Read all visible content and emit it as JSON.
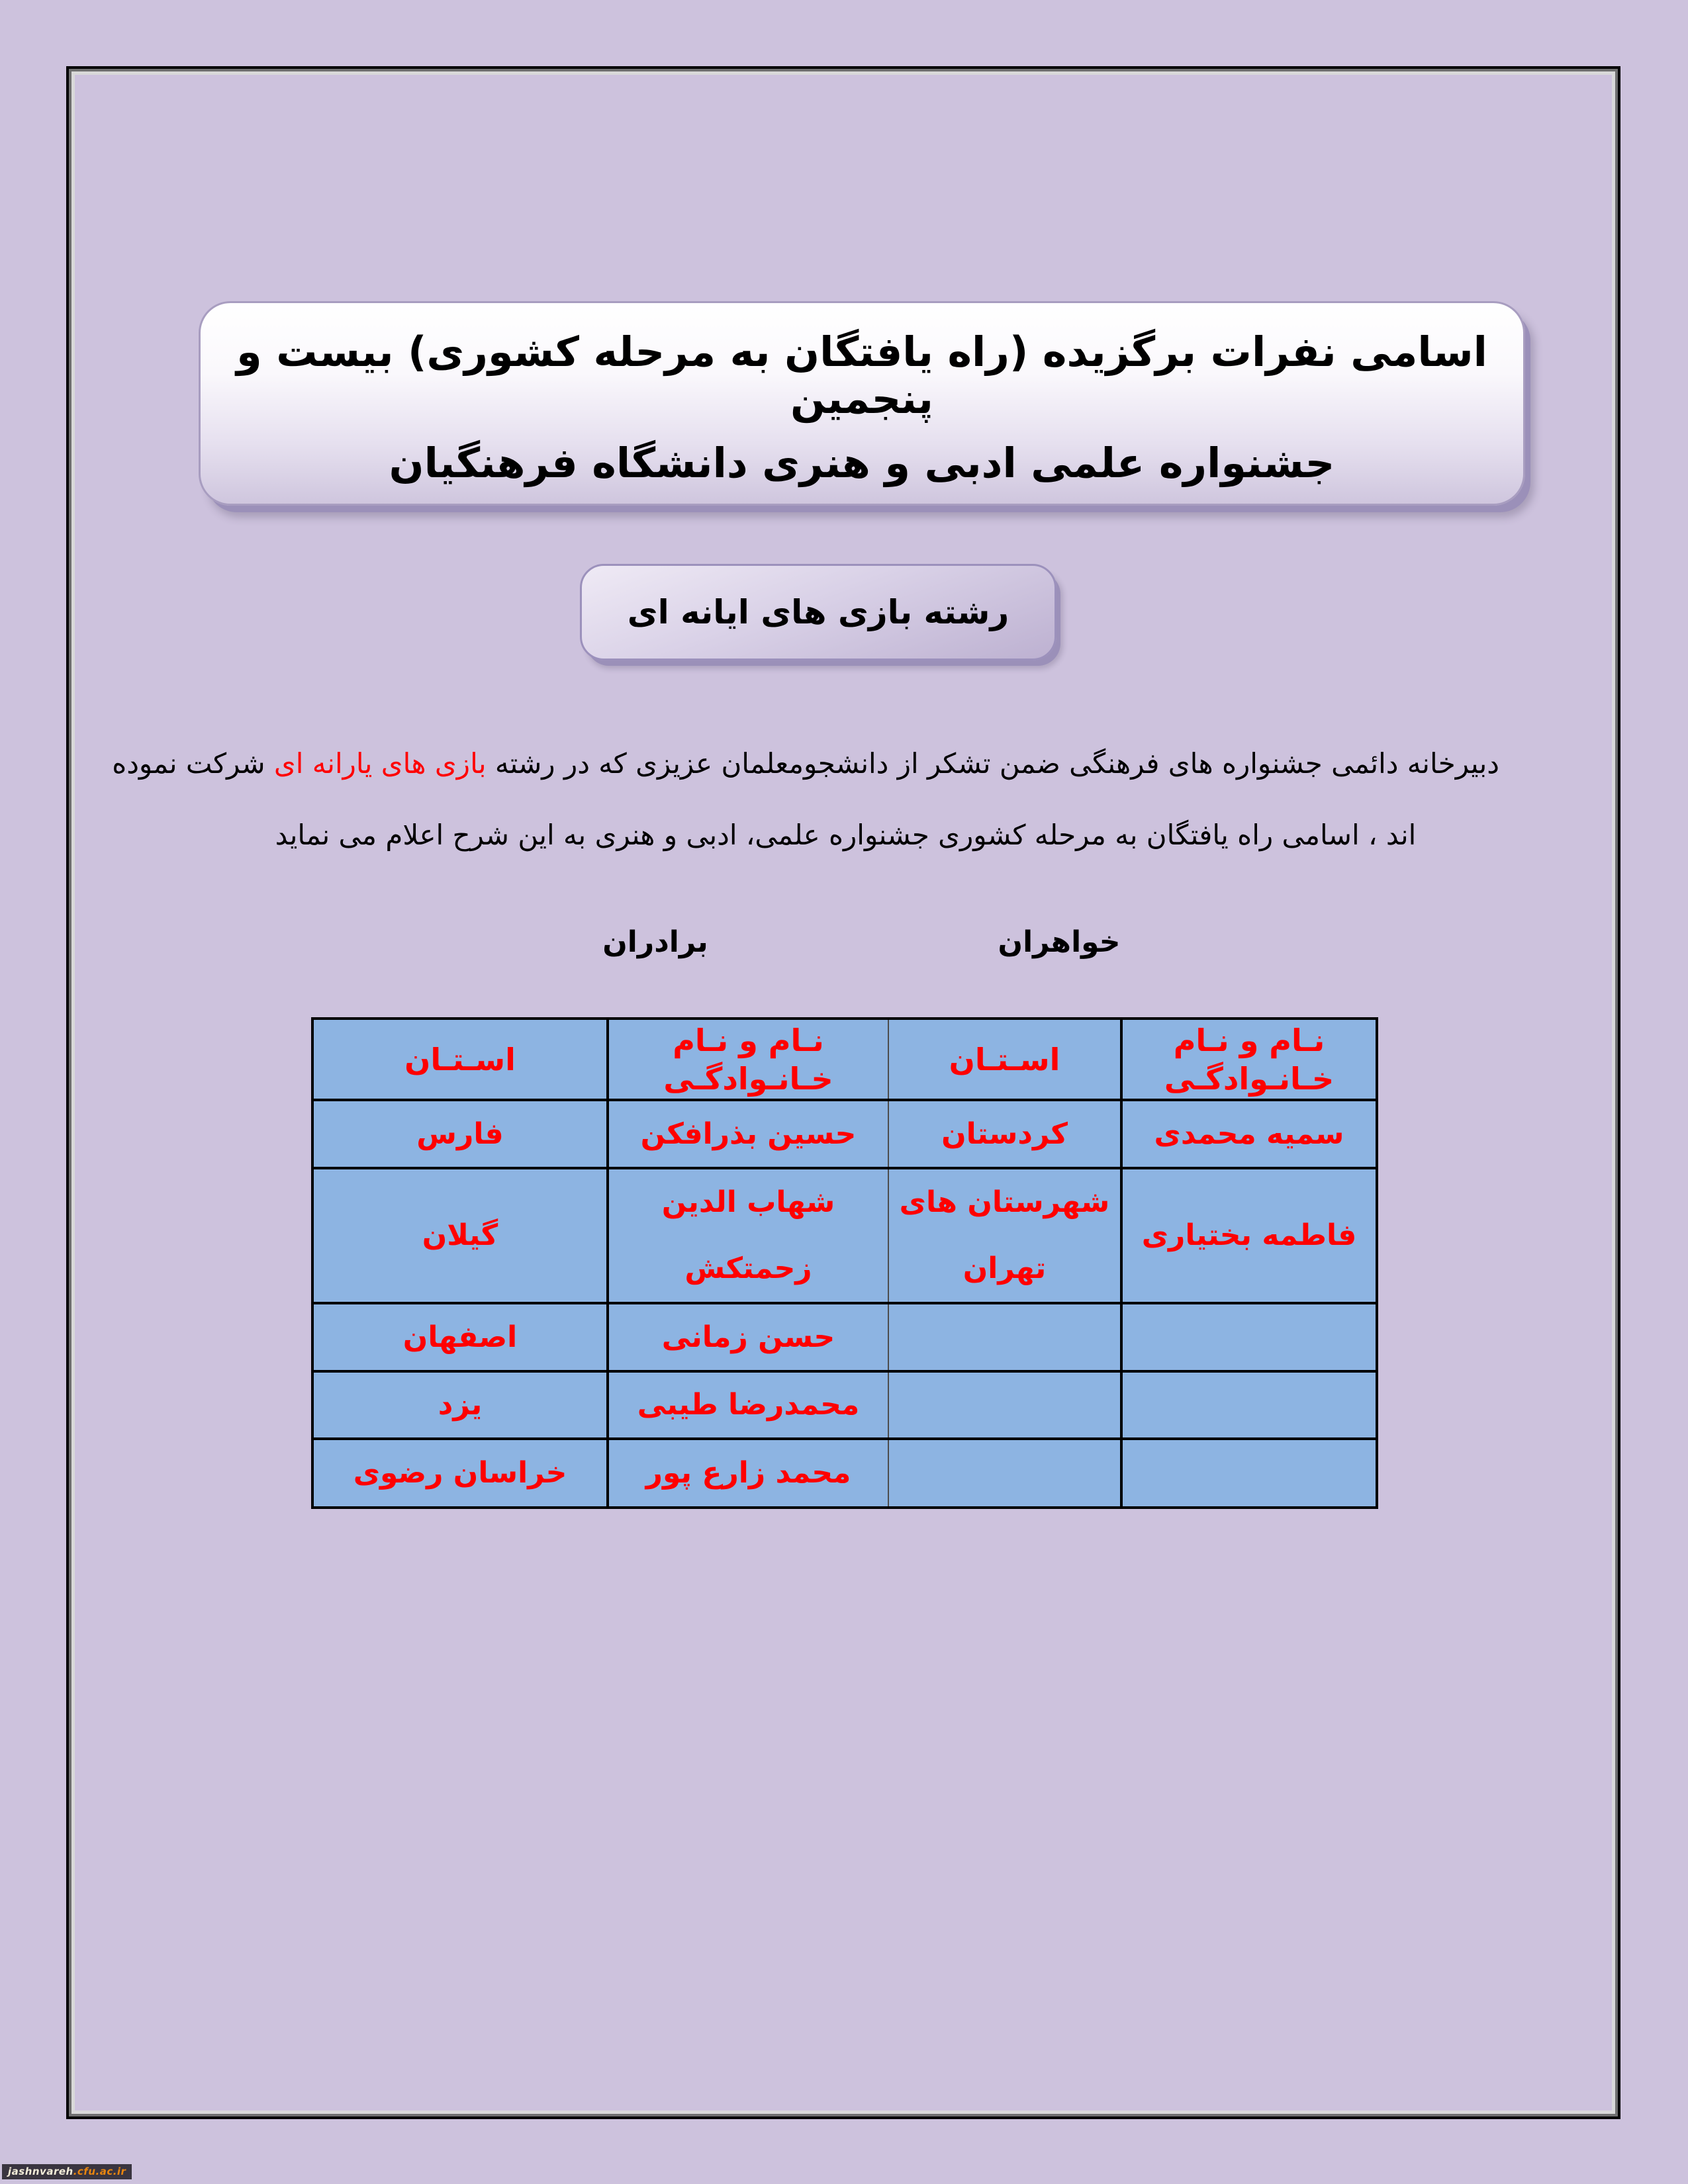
{
  "title_banner": {
    "line1": "اسامی نفرات برگزیده (راه یافتگان به  مرحله کشوری) بیست و پنجمین",
    "line2": "جشنواره علمی ادبی و هنری دانشگاه فرهنگیان"
  },
  "category_banner": {
    "label": "رشته بازی های ایانه ای"
  },
  "intro": {
    "part1": "دبیرخانه دائمی جشنواره های فرهنگی ضمن تشکر از دانشجومعلمان عزیزی که در رشته ",
    "highlight": "بازی های یارانه ای",
    "part2": "  شرکت نموده",
    "line2": "اند ، اسامی راه یافتگان به مرحله کشوری جشنواره علمی، ادبی و هنری به این شرح اعلام می نماید"
  },
  "groups": {
    "brothers": "برادران",
    "sisters": "خواهران"
  },
  "table": {
    "headers": {
      "name": "نـام و نـام خـانـوادگـی",
      "province": "اسـتـان"
    },
    "rows": [
      {
        "sister_name": "سمیه محمدی",
        "sister_province": "کردستان",
        "brother_name": "حسین بذرافکن",
        "brother_province": "فارس"
      },
      {
        "sister_name": "فاطمه بختیاری",
        "sister_province": "شهرستان های تهران",
        "brother_name": "شهاب الدین زحمتکش",
        "brother_province": "گیلان"
      },
      {
        "sister_name": "",
        "sister_province": "",
        "brother_name": "حسن زمانی",
        "brother_province": "اصفهان"
      },
      {
        "sister_name": "",
        "sister_province": "",
        "brother_name": "محمدرضا طیبی",
        "brother_province": "یزد"
      },
      {
        "sister_name": "",
        "sister_province": "",
        "brother_name": "محمد زارع پور",
        "brother_province": "خراسان رضوی"
      }
    ]
  },
  "watermark": {
    "site": "jashnvareh",
    "domain": ".cfu.ac.ir"
  },
  "colors": {
    "page_background": "#CDC2DD",
    "table_cell_blue": "#8DB4E2",
    "table_text_red": "#FF0000",
    "banner_border_purple": "#A89DC0",
    "banner_shadow_purple": "#9B90B9",
    "frame_black": "#000000",
    "watermark_bar": "#3A3540",
    "watermark_orange": "#E8850F"
  }
}
